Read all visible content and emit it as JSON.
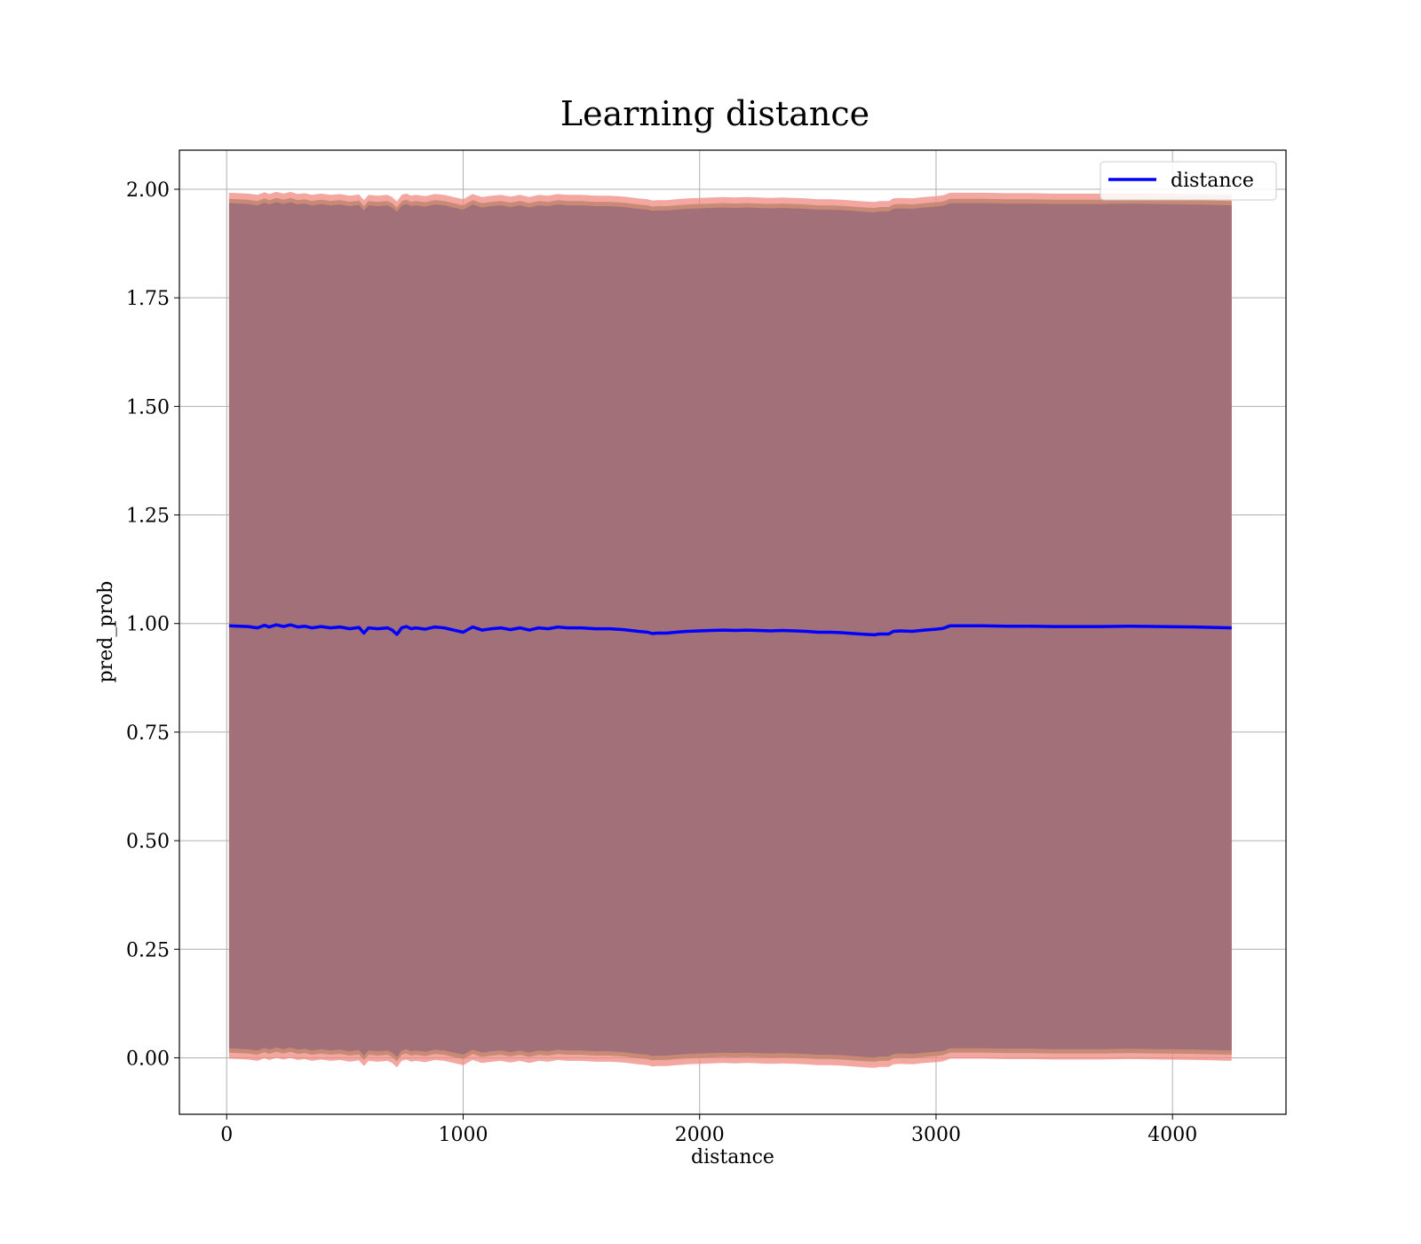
{
  "chart_data": {
    "type": "line",
    "title": "Learning distance",
    "xlabel": "distance",
    "ylabel": "pred_prob",
    "xlim": [
      -200,
      4480
    ],
    "ylim": [
      -0.13,
      2.09
    ],
    "xticks": [
      0,
      1000,
      2000,
      3000,
      4000
    ],
    "xtick_labels": [
      "0",
      "1000",
      "2000",
      "3000",
      "4000"
    ],
    "yticks": [
      0.0,
      0.25,
      0.5,
      0.75,
      1.0,
      1.25,
      1.5,
      1.75,
      2.0
    ],
    "ytick_labels": [
      "0.00",
      "0.25",
      "0.50",
      "0.75",
      "1.00",
      "1.25",
      "1.50",
      "1.75",
      "2.00"
    ],
    "grid": true,
    "legend_position": "top-right",
    "series": [
      {
        "name": "distance",
        "color": "#0000ff",
        "x": [
          10,
          90,
          130,
          160,
          180,
          210,
          240,
          270,
          300,
          330,
          360,
          400,
          440,
          480,
          520,
          560,
          580,
          600,
          640,
          680,
          700,
          720,
          740,
          760,
          780,
          800,
          840,
          880,
          920,
          960,
          1000,
          1040,
          1080,
          1120,
          1160,
          1200,
          1240,
          1280,
          1320,
          1360,
          1400,
          1440,
          1500,
          1560,
          1620,
          1680,
          1740,
          1780,
          1800,
          1820,
          1860,
          1900,
          1950,
          2000,
          2050,
          2100,
          2150,
          2200,
          2300,
          2350,
          2400,
          2450,
          2500,
          2550,
          2600,
          2650,
          2700,
          2740,
          2760,
          2800,
          2820,
          2850,
          2900,
          2950,
          3000,
          3030,
          3060,
          3100,
          3200,
          3300,
          3400,
          3500,
          3600,
          3700,
          3820,
          3950,
          4100,
          4250
        ],
        "y": [
          0.995,
          0.993,
          0.99,
          0.996,
          0.992,
          0.997,
          0.993,
          0.997,
          0.992,
          0.994,
          0.99,
          0.993,
          0.99,
          0.992,
          0.988,
          0.991,
          0.978,
          0.99,
          0.988,
          0.99,
          0.985,
          0.975,
          0.99,
          0.993,
          0.988,
          0.99,
          0.987,
          0.992,
          0.99,
          0.985,
          0.98,
          0.992,
          0.985,
          0.988,
          0.99,
          0.986,
          0.99,
          0.985,
          0.99,
          0.988,
          0.992,
          0.99,
          0.99,
          0.988,
          0.988,
          0.986,
          0.982,
          0.98,
          0.977,
          0.978,
          0.978,
          0.98,
          0.982,
          0.983,
          0.984,
          0.985,
          0.984,
          0.985,
          0.983,
          0.984,
          0.983,
          0.982,
          0.98,
          0.98,
          0.979,
          0.977,
          0.975,
          0.974,
          0.976,
          0.976,
          0.982,
          0.983,
          0.982,
          0.985,
          0.987,
          0.989,
          0.995,
          0.995,
          0.995,
          0.994,
          0.994,
          0.993,
          0.993,
          0.993,
          0.994,
          0.993,
          0.992,
          0.99
        ]
      }
    ],
    "band": {
      "color_outer": "#ef8a80",
      "color_inner": "#7b2a3e",
      "upper_offset": 0.985,
      "lower_offset": 0.985
    }
  }
}
